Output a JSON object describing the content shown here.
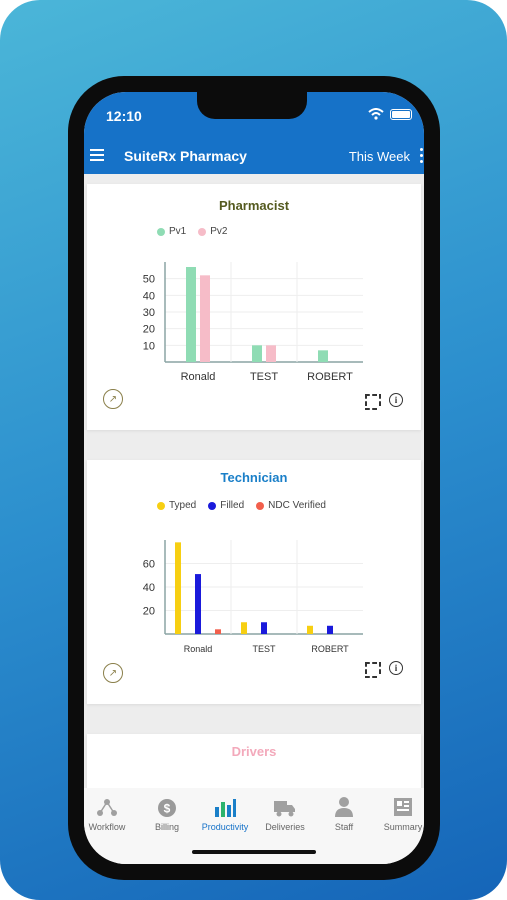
{
  "status": {
    "time": "12:10"
  },
  "appbar": {
    "title": "SuiteRx Pharmacy",
    "period": "This Week"
  },
  "pharmacist": {
    "title": "Pharmacist",
    "title_color": "#545a1f",
    "chart_data": {
      "type": "bar",
      "categories": [
        "Ronald",
        "TEST",
        "ROBERT"
      ],
      "series": [
        {
          "name": "Pv1",
          "values": [
            57,
            10,
            7
          ],
          "color": "#8fdcb4"
        },
        {
          "name": "Pv2",
          "values": [
            52,
            10,
            0
          ],
          "color": "#f6bcc8"
        }
      ],
      "y_ticks": [
        "10",
        "20",
        "30",
        "40",
        "50"
      ],
      "ylim": [
        0,
        60
      ],
      "legend": "top-left",
      "grid": true
    }
  },
  "technician": {
    "title": "Technician",
    "title_color": "#1a7fc8",
    "chart_data": {
      "type": "bar",
      "categories": [
        "Ronald",
        "TEST",
        "ROBERT"
      ],
      "series": [
        {
          "name": "Typed",
          "values": [
            78,
            10,
            7
          ],
          "color": "#f7cf12"
        },
        {
          "name": "Filled",
          "values": [
            51,
            10,
            7
          ],
          "color": "#1a1adb"
        },
        {
          "name": "NDC Verified",
          "values": [
            4,
            0,
            0
          ],
          "color": "#f25f4c"
        }
      ],
      "y_ticks": [
        "20",
        "40",
        "60"
      ],
      "ylim": [
        0,
        80
      ],
      "legend": "top-left",
      "grid": true
    }
  },
  "drivers": {
    "title": "Drivers",
    "title_color": "#f3a9bb"
  },
  "tabs": [
    {
      "label": "Workflow",
      "icon": "workflow-icon",
      "active": false
    },
    {
      "label": "Billing",
      "icon": "dollar-icon",
      "active": false
    },
    {
      "label": "Productivity",
      "icon": "bar-chart-icon",
      "active": true
    },
    {
      "label": "Deliveries",
      "icon": "truck-icon",
      "active": false
    },
    {
      "label": "Staff",
      "icon": "person-icon",
      "active": false
    },
    {
      "label": "Summary",
      "icon": "summary-icon",
      "active": false
    }
  ]
}
